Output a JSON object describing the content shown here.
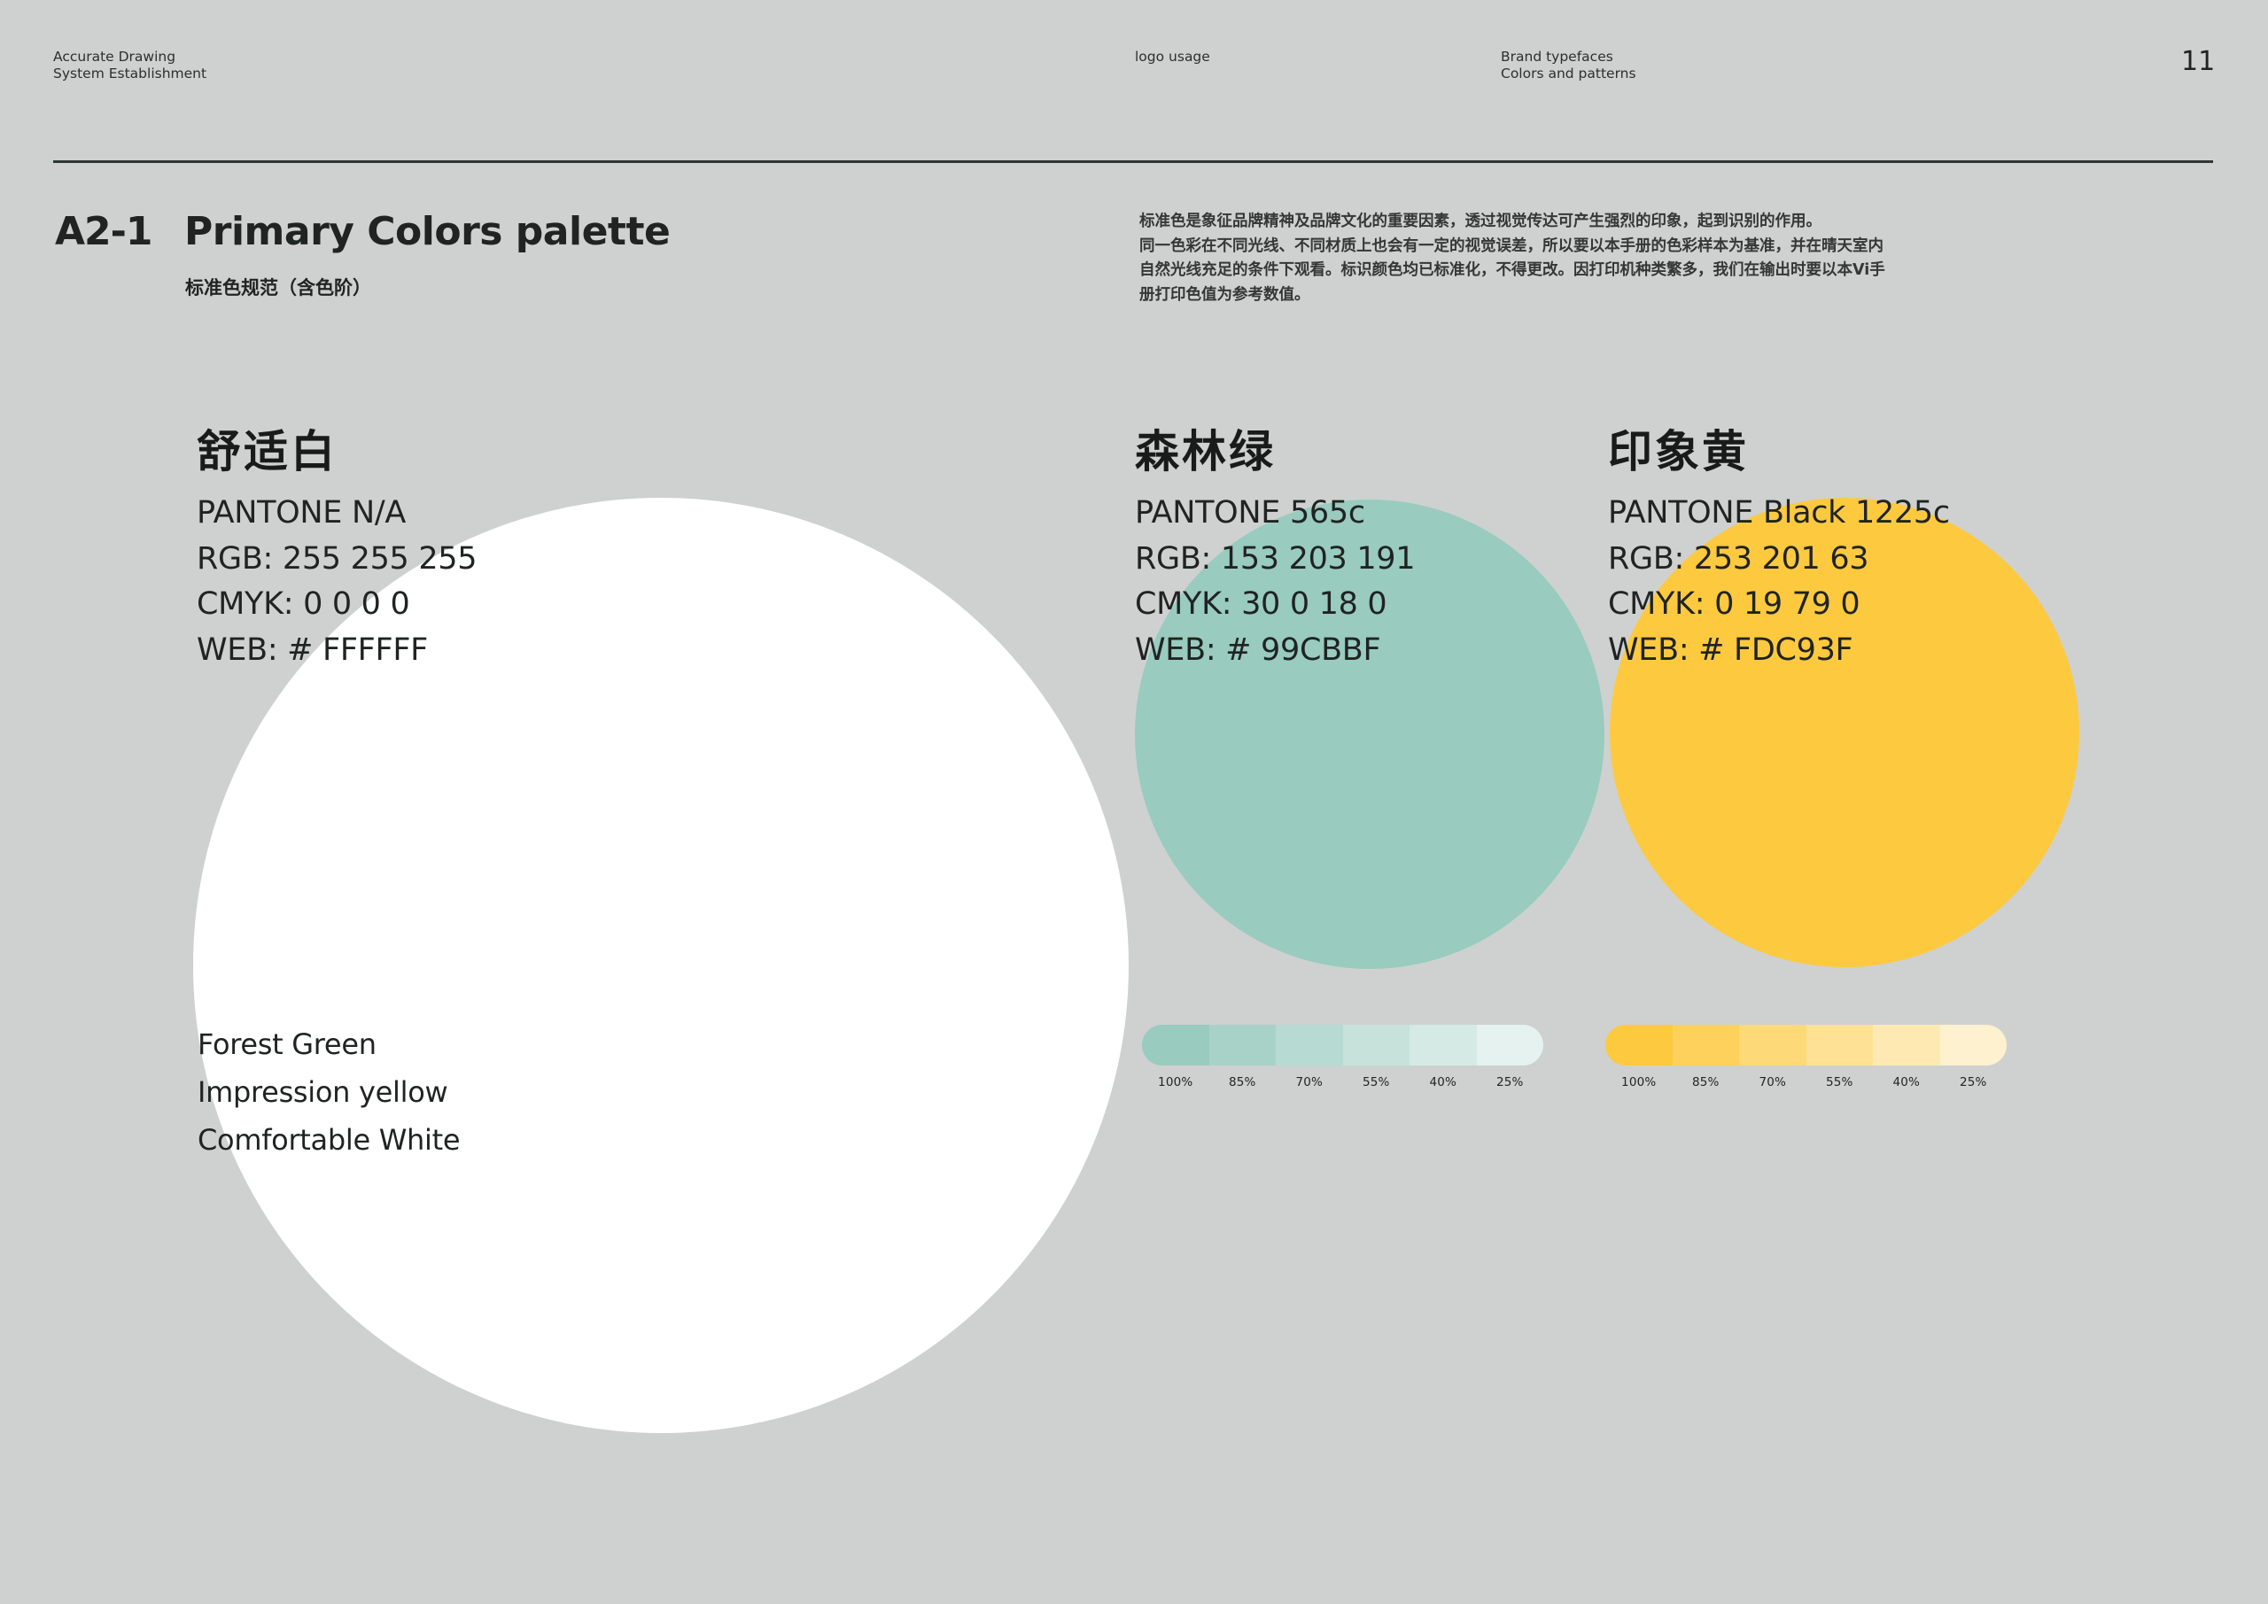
{
  "page": {
    "background": "#ced1d0",
    "page_number": "11"
  },
  "header": {
    "left": [
      "Accurate Drawing",
      "System Establishment"
    ],
    "center": "logo usage",
    "right": [
      "Brand typefaces",
      "Colors and patterns"
    ]
  },
  "section": {
    "code": "A2-1",
    "title": "Primary Colors palette",
    "subtitle": "标准色规范（含色阶）",
    "intro": [
      "标准色是象征品牌精神及品牌文化的重要因素，透过视觉传达可产生强烈的印象，起到识别的作用。",
      "同一色彩在不同光线、不同材质上也会有一定的视觉误差，所以要以本手册的色彩样本为基准，并在晴天室内",
      "自然光线充足的条件下观看。标识颜色均已标准化，不得更改。因打印机种类繁多，我们在输出时要以本Vi手",
      "册打印色值为参考数值。"
    ]
  },
  "swatches": [
    {
      "name_cn": "舒适白",
      "name_en": "Comfortable White",
      "pantone": "PANTONE N/A",
      "rgb": "RGB: 255 255 255",
      "cmyk": "CMYK: 0 0 0 0",
      "web": "WEB: # FFFFFF",
      "color": "#FFFFFF"
    },
    {
      "name_cn": "森林绿",
      "name_en": "Forest Green",
      "pantone": "PANTONE 565c",
      "rgb": "RGB: 153 203 191",
      "cmyk": "CMYK: 30 0 18 0",
      "web": "WEB: # 99CBBF",
      "color": "#99CBBF",
      "tints": [
        "#99cbbf",
        "#a8d2c8",
        "#b7dad2",
        "#c6e2db",
        "#d6eae5",
        "#e5f2ef"
      ]
    },
    {
      "name_cn": "印象黄",
      "name_en": "Impression yellow",
      "pantone": "PANTONE Black 1225c",
      "rgb": "RGB: 253 201 63",
      "cmyk": "CMYK: 0 19 79 0",
      "web": "WEB: # FDC93F",
      "color": "#FDC93F",
      "tints": [
        "#fdc93f",
        "#fdd15b",
        "#fdd978",
        "#fee195",
        "#fee9b2",
        "#fef1cf"
      ]
    }
  ],
  "tint_labels": [
    "100%",
    "85%",
    "70%",
    "55%",
    "40%",
    "25%"
  ],
  "color_names": [
    "Forest Green",
    "Impression yellow",
    "Comfortable White"
  ]
}
